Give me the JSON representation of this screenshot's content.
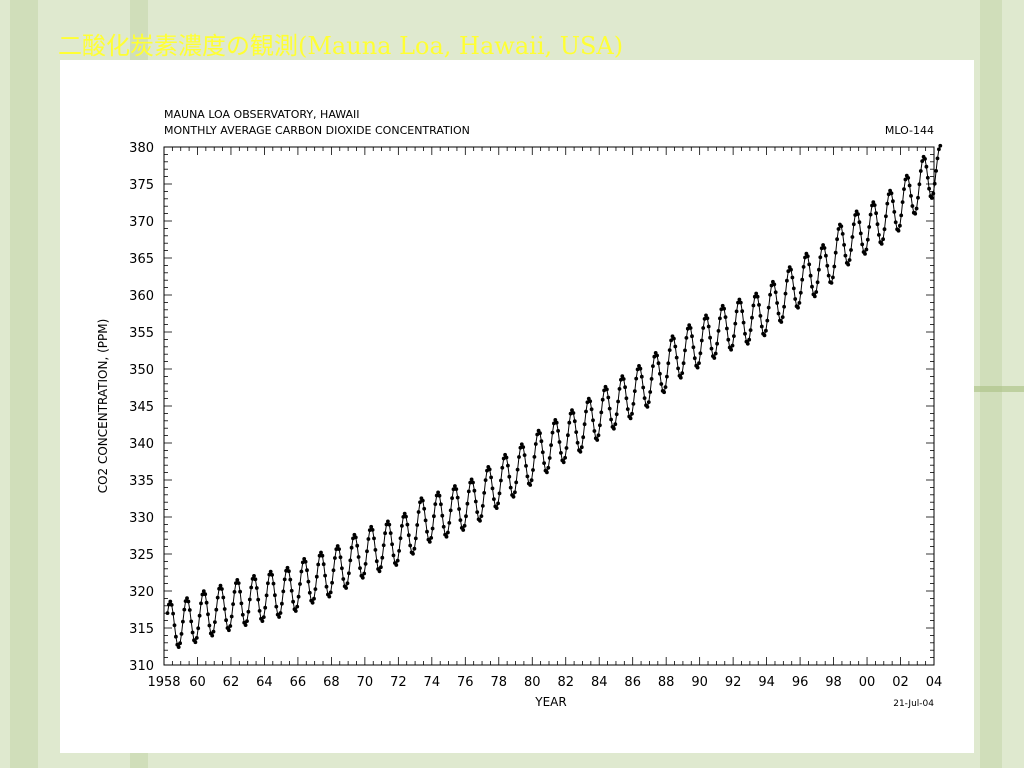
{
  "slide": {
    "title": "二酸化炭素濃度の観測(Mauna   Loa, Hawaii, USA)",
    "title_color": "#ffff33",
    "background_color": "#dfe9cf"
  },
  "chart_data": {
    "type": "line",
    "title": "MAUNA LOA OBSERVATORY, HAWAII",
    "subtitle": "MONTHLY AVERAGE CARBON DIOXIDE CONCENTRATION",
    "label_top_right": "MLO-144",
    "date_label": "21-Jul-04",
    "xlabel": "YEAR",
    "ylabel": "CO2 CONCENTRATION, (PPM)",
    "xlim": [
      1958,
      2004
    ],
    "ylim": [
      310,
      380
    ],
    "x_tick_values": [
      1958,
      1960,
      1962,
      1964,
      1966,
      1968,
      1970,
      1972,
      1974,
      1976,
      1978,
      1980,
      1982,
      1984,
      1986,
      1988,
      1990,
      1992,
      1994,
      1996,
      1998,
      2000,
      2002,
      2004
    ],
    "x_tick_labels": [
      "1958",
      "60",
      "62",
      "64",
      "66",
      "68",
      "70",
      "72",
      "74",
      "76",
      "78",
      "80",
      "82",
      "84",
      "86",
      "88",
      "90",
      "92",
      "94",
      "96",
      "98",
      "00",
      "02",
      "04"
    ],
    "y_tick_values": [
      310,
      315,
      320,
      325,
      330,
      335,
      340,
      345,
      350,
      355,
      360,
      365,
      370,
      375,
      380
    ],
    "y_tick_labels": [
      "310",
      "315",
      "320",
      "325",
      "330",
      "335",
      "340",
      "345",
      "350",
      "355",
      "360",
      "365",
      "370",
      "375",
      "380"
    ],
    "grid": false,
    "marker": "filled-circle",
    "line_color": "#000000",
    "series": [
      {
        "name": "",
        "seasonal_amplitude_ppm": 3.2,
        "x": [
          1958.2,
          1959.5,
          1960.5,
          1961.5,
          1962.5,
          1963.5,
          1964.5,
          1965.5,
          1966.5,
          1967.5,
          1968.5,
          1969.5,
          1970.5,
          1971.5,
          1972.5,
          1973.5,
          1974.5,
          1975.5,
          1976.5,
          1977.5,
          1978.5,
          1979.5,
          1980.5,
          1981.5,
          1982.5,
          1983.5,
          1984.5,
          1985.5,
          1986.5,
          1987.5,
          1988.5,
          1989.5,
          1990.5,
          1991.5,
          1992.5,
          1993.5,
          1994.5,
          1995.5,
          1996.5,
          1997.5,
          1998.5,
          1999.5,
          2000.5,
          2001.5,
          2002.5,
          2003.5,
          2004.4
        ],
        "y_annual_mean": [
          315.3,
          315.9,
          316.9,
          317.6,
          318.4,
          318.9,
          319.5,
          320.0,
          321.3,
          322.1,
          323.0,
          324.6,
          325.6,
          326.3,
          327.4,
          329.6,
          330.2,
          331.1,
          332.0,
          333.8,
          335.4,
          336.8,
          338.7,
          340.1,
          341.4,
          343.0,
          344.6,
          346.0,
          347.4,
          349.2,
          351.5,
          352.9,
          354.2,
          355.5,
          356.3,
          357.1,
          358.8,
          360.8,
          362.6,
          363.7,
          366.7,
          368.3,
          369.5,
          371.1,
          373.2,
          375.8,
          377.0
        ]
      }
    ]
  }
}
